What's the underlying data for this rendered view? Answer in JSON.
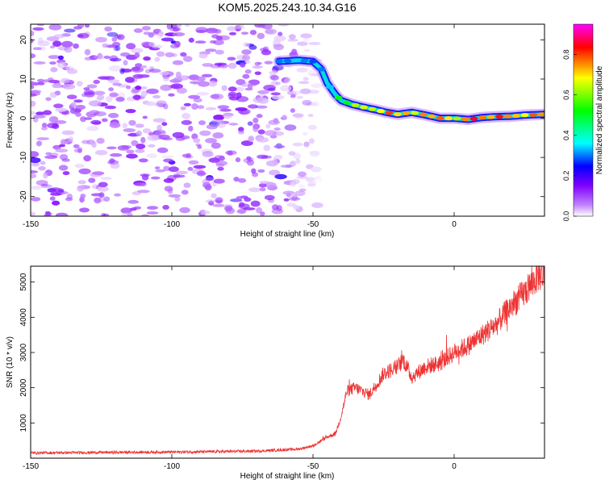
{
  "title": "KOM5.2025.243.10.34.G16",
  "colors": {
    "frame": "#000000",
    "snr_line": "#ee3333",
    "colormap": [
      "#ffffff",
      "#c080ff",
      "#7f00ff",
      "#0000ff",
      "#00ffff",
      "#00ff00",
      "#ffff00",
      "#ff0000",
      "#ff00ff"
    ]
  },
  "chart_data": [
    {
      "type": "heatmap",
      "xlabel": "Height of straight line (km)",
      "ylabel": "Frequency (Hz)",
      "xlim": [
        -150,
        32
      ],
      "ylim": [
        -25,
        24
      ],
      "x_ticks": [
        -150,
        -100,
        -50,
        0
      ],
      "y_ticks": [
        20,
        10,
        0,
        -10,
        -20
      ],
      "colorbar": {
        "label": "Normalized spectral amplitude",
        "range": [
          0.0,
          0.95
        ],
        "ticks": [
          0.0,
          0.2,
          0.4,
          0.6,
          0.8
        ]
      },
      "ridge": {
        "description": "dominant frequency track",
        "x": [
          -62,
          -55,
          -50,
          -47,
          -45,
          -42,
          -40,
          -36,
          -32,
          -28,
          -24,
          -20,
          -15,
          -10,
          -5,
          0,
          5,
          10,
          15,
          20,
          25,
          32
        ],
        "y": [
          14.5,
          14.8,
          14.5,
          12.5,
          9.0,
          6.0,
          4.5,
          3.5,
          2.8,
          2.2,
          1.5,
          1.0,
          1.5,
          0.8,
          0.0,
          0.0,
          -0.3,
          0.2,
          0.4,
          0.5,
          0.8,
          1.0
        ],
        "amplitude": [
          0.3,
          0.35,
          0.3,
          0.28,
          0.32,
          0.4,
          0.55,
          0.6,
          0.65,
          0.7,
          0.75,
          0.8,
          0.75,
          0.78,
          0.85,
          0.7,
          0.8,
          0.75,
          0.82,
          0.78,
          0.8,
          0.8
        ]
      },
      "noise_region": {
        "x_range": [
          -150,
          -50
        ],
        "typical_amplitude": [
          0.02,
          0.15
        ]
      }
    },
    {
      "type": "line",
      "xlabel": "Height of straight line (km)",
      "ylabel": "SNR (10 * v/v)",
      "xlim": [
        -150,
        32
      ],
      "ylim": [
        0,
        5450
      ],
      "x_ticks": [
        -150,
        -100,
        -50,
        0
      ],
      "y_ticks": [
        1000,
        2000,
        3000,
        4000,
        5000
      ],
      "series": [
        {
          "name": "SNR",
          "x": [
            -150,
            -130,
            -110,
            -90,
            -70,
            -55,
            -50,
            -47,
            -45,
            -42,
            -40,
            -38,
            -35,
            -30,
            -25,
            -20,
            -18,
            -15,
            -10,
            -5,
            0,
            5,
            10,
            15,
            20,
            25,
            30,
            32
          ],
          "y": [
            150,
            160,
            170,
            180,
            200,
            260,
            350,
            500,
            600,
            700,
            1200,
            1900,
            2000,
            1800,
            2400,
            2600,
            2800,
            2300,
            2600,
            2700,
            3000,
            3200,
            3500,
            3800,
            4300,
            4700,
            5200,
            5200
          ]
        }
      ]
    }
  ]
}
